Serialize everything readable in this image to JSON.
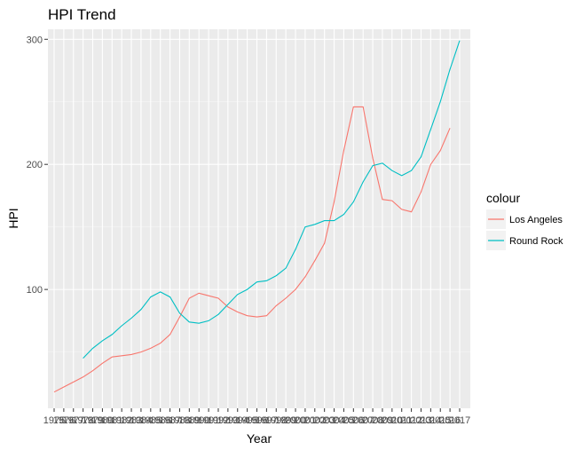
{
  "chart_data": {
    "type": "line",
    "title": "HPI Trend",
    "xlabel": "Year",
    "ylabel": "HPI",
    "xlim": [
      1975,
      2017
    ],
    "ylim": [
      5,
      308
    ],
    "y_ticks": [
      100,
      200,
      300
    ],
    "x_tick_labels": [
      "1975",
      "1976",
      "1977",
      "1978",
      "1979",
      "1980",
      "1981",
      "1982",
      "1983",
      "1984",
      "1985",
      "1986",
      "1987",
      "1988",
      "1989",
      "1990",
      "1991",
      "1992",
      "1993",
      "1994",
      "1995",
      "1996",
      "1997",
      "1998",
      "1999",
      "2000",
      "2001",
      "2002",
      "2003",
      "2004",
      "2005",
      "2006",
      "2007",
      "2008",
      "2009",
      "2010",
      "2011",
      "2012",
      "2013",
      "2014",
      "2015",
      "2016",
      "2017"
    ],
    "grid": true,
    "panel_background": "#ebebeb",
    "legend": {
      "title": "colour",
      "position": "right"
    },
    "series": [
      {
        "name": "Los Angeles",
        "color": "#f8766d",
        "x": [
          1975,
          1976,
          1977,
          1978,
          1979,
          1980,
          1981,
          1982,
          1983,
          1984,
          1985,
          1986,
          1987,
          1988,
          1989,
          1990,
          1991,
          1992,
          1993,
          1994,
          1995,
          1996,
          1997,
          1998,
          1999,
          2000,
          2001,
          2002,
          2003,
          2004,
          2005,
          2006,
          2007,
          2008,
          2009,
          2010,
          2011,
          2012,
          2013,
          2014,
          2015,
          2016
        ],
        "values": [
          18,
          22,
          26,
          30,
          35,
          41,
          46,
          47,
          48,
          50,
          53,
          57,
          64,
          78,
          93,
          97,
          95,
          93,
          86,
          82,
          79,
          78,
          79,
          87,
          93,
          100,
          110,
          123,
          137,
          170,
          211,
          246,
          246,
          205,
          172,
          171,
          164,
          162,
          178,
          200,
          211,
          229
        ]
      },
      {
        "name": "Round Rock",
        "color": "#00bfc4",
        "x": [
          1978,
          1979,
          1980,
          1981,
          1982,
          1983,
          1984,
          1985,
          1986,
          1987,
          1988,
          1989,
          1990,
          1991,
          1992,
          1993,
          1994,
          1995,
          1996,
          1997,
          1998,
          1999,
          2000,
          2001,
          2002,
          2003,
          2004,
          2005,
          2006,
          2007,
          2008,
          2009,
          2010,
          2011,
          2012,
          2013,
          2014,
          2015,
          2016,
          2017
        ],
        "values": [
          45,
          53,
          59,
          64,
          71,
          77,
          84,
          94,
          98,
          94,
          81,
          74,
          73,
          75,
          80,
          88,
          96,
          100,
          106,
          107,
          111,
          117,
          132,
          150,
          152,
          155,
          155,
          160,
          170,
          186,
          199,
          201,
          195,
          191,
          195,
          206,
          228,
          250,
          276,
          299
        ]
      }
    ]
  }
}
